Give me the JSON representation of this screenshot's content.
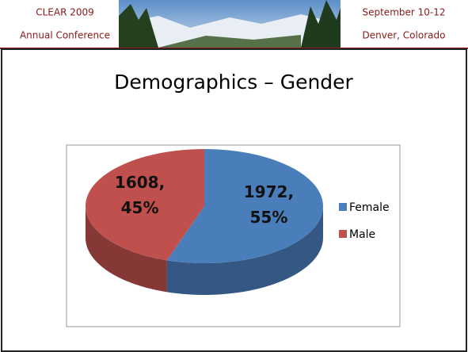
{
  "header": {
    "left": [
      "CLEAR 2009",
      "Annual Conference"
    ],
    "right": [
      "September 10-12",
      "Denver, Colorado"
    ]
  },
  "chart_data": {
    "type": "pie",
    "title": "Demographics – Gender",
    "categories": [
      "Female",
      "Male"
    ],
    "values": [
      1972,
      1608
    ],
    "value_labels": [
      "1972, 55%",
      "1608, 45%"
    ],
    "colors": [
      "#4a7ebb",
      "#c0504d"
    ],
    "legend": "right"
  }
}
